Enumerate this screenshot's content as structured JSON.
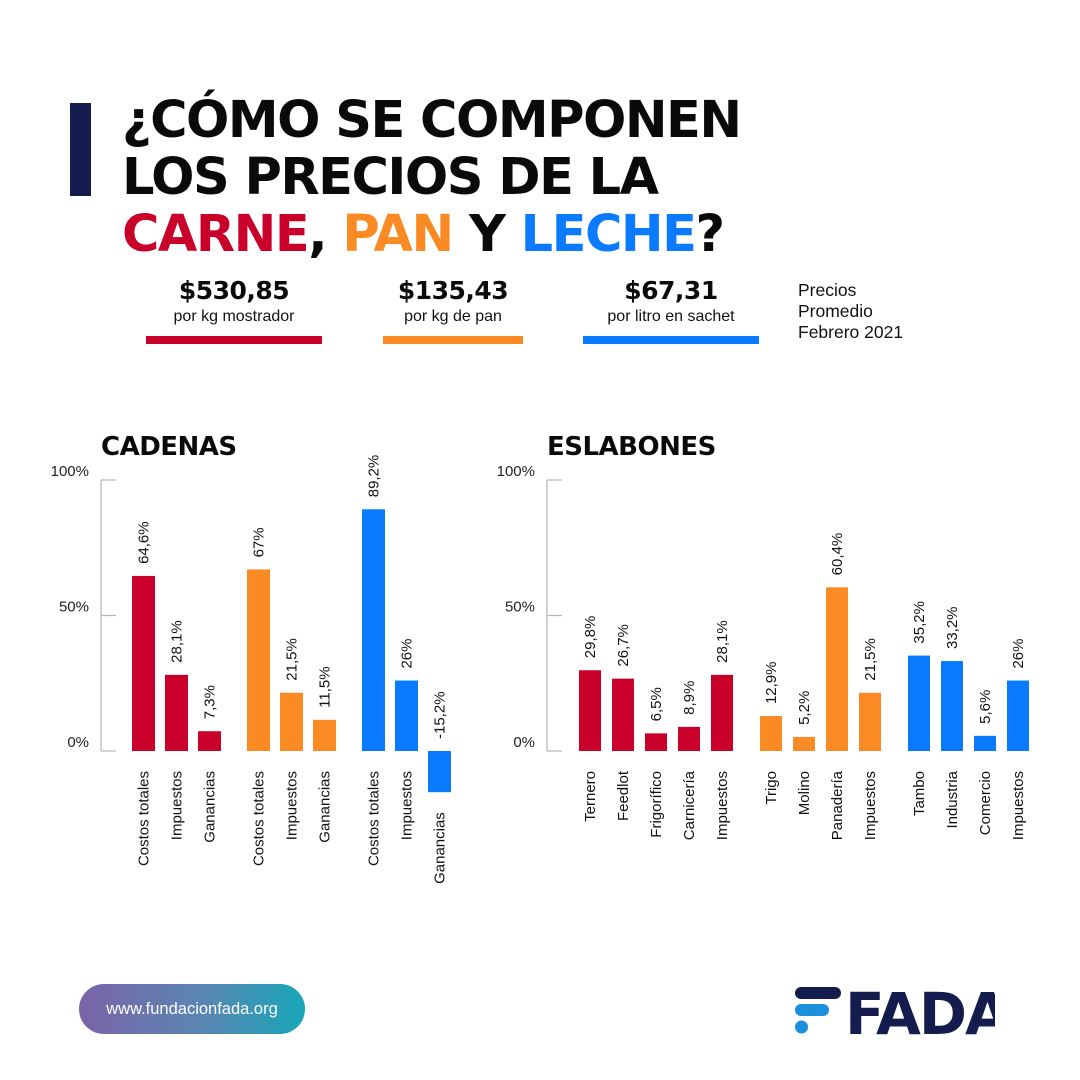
{
  "header": {
    "title_line1": "¿CÓMO SE COMPONEN",
    "title_line2": "LOS PRECIOS DE LA",
    "title_line3_parts": [
      {
        "text": "CARNE",
        "color": "#c8002a"
      },
      {
        "text": ", ",
        "color": "#0a0a0a"
      },
      {
        "text": "PAN",
        "color": "#fa8a23"
      },
      {
        "text": " Y ",
        "color": "#0a0a0a"
      },
      {
        "text": "LECHE",
        "color": "#0a7bff"
      },
      {
        "text": "?",
        "color": "#0a0a0a"
      }
    ]
  },
  "prices": [
    {
      "value": "$530,85",
      "desc": "por kg mostrador",
      "color": "#c8002a"
    },
    {
      "value": "$135,43",
      "desc": "por kg de pan",
      "color": "#fa8a23"
    },
    {
      "value": "$67,31",
      "desc": "por litro en sachet",
      "color": "#0a7bff"
    }
  ],
  "price_note": [
    "Precios",
    "Promedio",
    "Febrero 2021"
  ],
  "colors": {
    "carne": "#c8002a",
    "pan": "#fa8a23",
    "leche": "#0a7bff",
    "navy": "#141b4d"
  },
  "chart_data": [
    {
      "type": "bar",
      "title": "CADENAS",
      "xlabel": "",
      "ylabel": "",
      "ylim": [
        0,
        100
      ],
      "yticks": [
        0,
        50,
        100
      ],
      "ytick_labels": [
        "0%",
        "50%",
        "100%"
      ],
      "grid": false,
      "groups": [
        {
          "name": "Carne",
          "color": "#c8002a",
          "categories": [
            "Costos totales",
            "Impuestos",
            "Ganancias"
          ],
          "values": [
            64.6,
            28.1,
            7.3
          ],
          "labels": [
            "64,6%",
            "28,1%",
            "7,3%"
          ]
        },
        {
          "name": "Pan",
          "color": "#fa8a23",
          "categories": [
            "Costos totales",
            "Impuestos",
            "Ganancias"
          ],
          "values": [
            67,
            21.5,
            11.5
          ],
          "labels": [
            "67%",
            "21,5%",
            "11,5%"
          ]
        },
        {
          "name": "Leche",
          "color": "#0a7bff",
          "categories": [
            "Costos totales",
            "Impuestos",
            "Ganancias"
          ],
          "values": [
            89.2,
            26,
            -15.2
          ],
          "labels": [
            "89,2%",
            "26%",
            "-15,2%"
          ]
        }
      ]
    },
    {
      "type": "bar",
      "title": "ESLABONES",
      "xlabel": "",
      "ylabel": "",
      "ylim": [
        0,
        100
      ],
      "yticks": [
        0,
        50,
        100
      ],
      "ytick_labels": [
        "0%",
        "50%",
        "100%"
      ],
      "grid": false,
      "groups": [
        {
          "name": "Carne",
          "color": "#c8002a",
          "categories": [
            "Ternero",
            "Feedlot",
            "Frigorífico",
            "Carnicería",
            "Impuestos"
          ],
          "values": [
            29.8,
            26.7,
            6.5,
            8.9,
            28.1
          ],
          "labels": [
            "29,8%",
            "26,7%",
            "6,5%",
            "8,9%",
            "28,1%"
          ]
        },
        {
          "name": "Pan",
          "color": "#fa8a23",
          "categories": [
            "Trigo",
            "Molino",
            "Panadería",
            "Impuestos"
          ],
          "values": [
            12.9,
            5.2,
            60.4,
            21.5
          ],
          "labels": [
            "12,9%",
            "5,2%",
            "60,4%",
            "21,5%"
          ]
        },
        {
          "name": "Leche",
          "color": "#0a7bff",
          "categories": [
            "Tambo",
            "Industria",
            "Comercio",
            "Impuestos"
          ],
          "values": [
            35.2,
            33.2,
            5.6,
            26
          ],
          "labels": [
            "35,2%",
            "33,2%",
            "5,6%",
            "26%"
          ]
        }
      ]
    }
  ],
  "footer": {
    "website": "www.fundacionfada.org",
    "logo_text": "FADA"
  }
}
